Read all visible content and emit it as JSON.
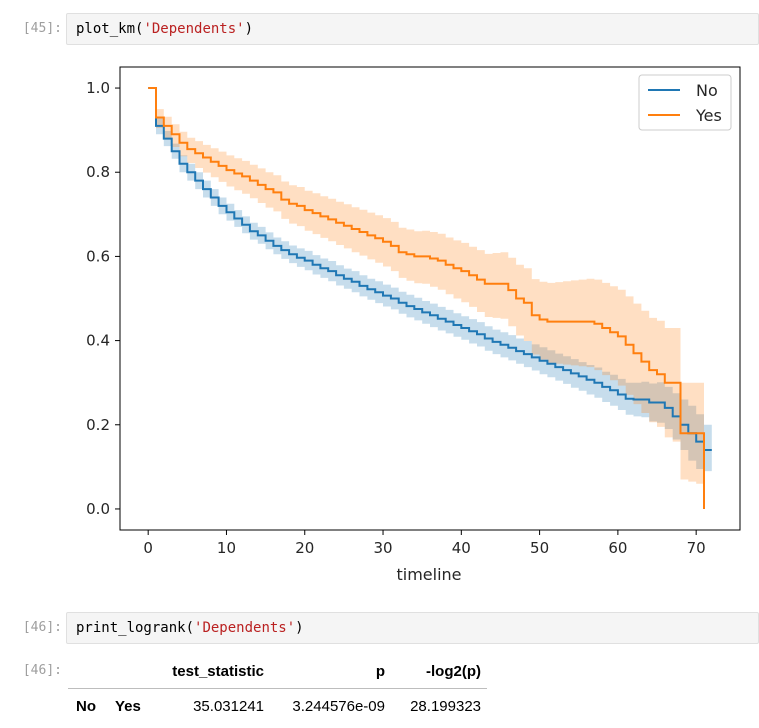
{
  "cells": [
    {
      "prompt": "[45]:",
      "func": "plot_km",
      "arg": "'Dependents'"
    },
    {
      "prompt": "[46]:",
      "func": "print_logrank",
      "arg": "'Dependents'"
    }
  ],
  "output_prompt": "[46]:",
  "chart_data": {
    "type": "line",
    "subtype": "kaplan-meier step with confidence bands",
    "title": "",
    "xlabel": "timeline",
    "ylabel": "",
    "xlim": [
      -3.6,
      75.6
    ],
    "ylim": [
      -0.05,
      1.05
    ],
    "x_ticks": [
      "0",
      "10",
      "20",
      "30",
      "40",
      "50",
      "60",
      "70"
    ],
    "y_ticks": [
      "0.0",
      "0.2",
      "0.4",
      "0.6",
      "0.8",
      "1.0"
    ],
    "legend": {
      "position": "top-right",
      "entries": [
        "No",
        "Yes"
      ]
    },
    "grid": false,
    "series": [
      {
        "name": "No",
        "color": "#1f77b4",
        "x": [
          0,
          1,
          2,
          3,
          4,
          5,
          6,
          7,
          8,
          9,
          10,
          11,
          12,
          13,
          14,
          15,
          16,
          17,
          18,
          19,
          20,
          21,
          22,
          23,
          24,
          25,
          26,
          27,
          28,
          29,
          30,
          31,
          32,
          33,
          34,
          35,
          36,
          37,
          38,
          39,
          40,
          41,
          42,
          43,
          44,
          45,
          46,
          47,
          48,
          49,
          50,
          51,
          52,
          53,
          54,
          55,
          56,
          57,
          58,
          59,
          60,
          61,
          62,
          63,
          64,
          65,
          66,
          67,
          68,
          69,
          70,
          71,
          72
        ],
        "y": [
          1.0,
          0.91,
          0.88,
          0.85,
          0.82,
          0.8,
          0.78,
          0.76,
          0.74,
          0.72,
          0.705,
          0.69,
          0.675,
          0.66,
          0.65,
          0.637,
          0.625,
          0.615,
          0.605,
          0.597,
          0.59,
          0.58,
          0.572,
          0.565,
          0.555,
          0.547,
          0.54,
          0.53,
          0.522,
          0.515,
          0.507,
          0.5,
          0.49,
          0.482,
          0.475,
          0.467,
          0.46,
          0.452,
          0.445,
          0.437,
          0.43,
          0.422,
          0.415,
          0.405,
          0.397,
          0.39,
          0.383,
          0.375,
          0.368,
          0.36,
          0.352,
          0.345,
          0.337,
          0.33,
          0.322,
          0.315,
          0.307,
          0.3,
          0.29,
          0.282,
          0.272,
          0.262,
          0.26,
          0.26,
          0.253,
          0.253,
          0.24,
          0.22,
          0.2,
          0.18,
          0.16,
          0.14,
          0.14
        ],
        "ci_lower": [
          1.0,
          0.89,
          0.862,
          0.832,
          0.8,
          0.78,
          0.76,
          0.74,
          0.72,
          0.7,
          0.685,
          0.67,
          0.655,
          0.64,
          0.63,
          0.617,
          0.605,
          0.594,
          0.584,
          0.575,
          0.567,
          0.557,
          0.549,
          0.541,
          0.531,
          0.523,
          0.515,
          0.505,
          0.497,
          0.489,
          0.481,
          0.474,
          0.464,
          0.455,
          0.448,
          0.44,
          0.432,
          0.424,
          0.417,
          0.409,
          0.402,
          0.393,
          0.386,
          0.376,
          0.368,
          0.36,
          0.353,
          0.345,
          0.337,
          0.329,
          0.32,
          0.313,
          0.305,
          0.297,
          0.288,
          0.281,
          0.272,
          0.264,
          0.254,
          0.245,
          0.235,
          0.224,
          0.22,
          0.218,
          0.208,
          0.205,
          0.19,
          0.165,
          0.14,
          0.115,
          0.095,
          0.09,
          0.09
        ],
        "ci_upper": [
          1.0,
          0.93,
          0.898,
          0.868,
          0.84,
          0.82,
          0.8,
          0.78,
          0.76,
          0.74,
          0.725,
          0.71,
          0.695,
          0.68,
          0.67,
          0.657,
          0.645,
          0.636,
          0.626,
          0.619,
          0.613,
          0.603,
          0.595,
          0.589,
          0.579,
          0.571,
          0.565,
          0.555,
          0.547,
          0.541,
          0.533,
          0.526,
          0.516,
          0.509,
          0.502,
          0.494,
          0.488,
          0.48,
          0.473,
          0.465,
          0.458,
          0.451,
          0.444,
          0.434,
          0.426,
          0.42,
          0.413,
          0.405,
          0.399,
          0.391,
          0.384,
          0.377,
          0.369,
          0.363,
          0.356,
          0.349,
          0.342,
          0.336,
          0.326,
          0.319,
          0.309,
          0.3,
          0.3,
          0.302,
          0.298,
          0.301,
          0.29,
          0.275,
          0.26,
          0.245,
          0.225,
          0.2,
          0.2
        ]
      },
      {
        "name": "Yes",
        "color": "#ff7f0e",
        "x": [
          0,
          1,
          2,
          3,
          4,
          5,
          6,
          7,
          8,
          9,
          10,
          11,
          12,
          13,
          14,
          15,
          16,
          17,
          18,
          19,
          20,
          21,
          22,
          23,
          24,
          25,
          26,
          27,
          28,
          29,
          30,
          31,
          32,
          33,
          34,
          35,
          36,
          37,
          38,
          39,
          40,
          41,
          42,
          43,
          44,
          45,
          46,
          47,
          48,
          49,
          50,
          51,
          52,
          53,
          54,
          55,
          56,
          57,
          58,
          59,
          60,
          61,
          62,
          63,
          64,
          65,
          66,
          67,
          68,
          69,
          70,
          71
        ],
        "y": [
          1.0,
          0.93,
          0.91,
          0.89,
          0.87,
          0.855,
          0.845,
          0.835,
          0.825,
          0.815,
          0.805,
          0.797,
          0.79,
          0.78,
          0.77,
          0.76,
          0.752,
          0.735,
          0.725,
          0.72,
          0.71,
          0.703,
          0.695,
          0.688,
          0.68,
          0.673,
          0.665,
          0.658,
          0.65,
          0.643,
          0.635,
          0.625,
          0.61,
          0.605,
          0.6,
          0.6,
          0.595,
          0.59,
          0.58,
          0.572,
          0.565,
          0.555,
          0.545,
          0.535,
          0.535,
          0.535,
          0.52,
          0.5,
          0.49,
          0.46,
          0.45,
          0.445,
          0.445,
          0.445,
          0.445,
          0.445,
          0.445,
          0.44,
          0.43,
          0.42,
          0.41,
          0.39,
          0.37,
          0.35,
          0.33,
          0.32,
          0.3,
          0.3,
          0.18,
          0.18,
          0.18,
          0.0
        ],
        "ci_lower": [
          1.0,
          0.905,
          0.882,
          0.86,
          0.838,
          0.822,
          0.81,
          0.799,
          0.788,
          0.777,
          0.766,
          0.757,
          0.749,
          0.738,
          0.727,
          0.716,
          0.707,
          0.689,
          0.678,
          0.672,
          0.661,
          0.653,
          0.644,
          0.636,
          0.627,
          0.619,
          0.61,
          0.602,
          0.593,
          0.585,
          0.576,
          0.565,
          0.549,
          0.542,
          0.536,
          0.535,
          0.528,
          0.521,
          0.51,
          0.5,
          0.491,
          0.48,
          0.468,
          0.456,
          0.454,
          0.452,
          0.434,
          0.412,
          0.399,
          0.367,
          0.355,
          0.347,
          0.345,
          0.343,
          0.341,
          0.339,
          0.337,
          0.33,
          0.318,
          0.306,
          0.293,
          0.271,
          0.249,
          0.228,
          0.206,
          0.195,
          0.17,
          0.16,
          0.07,
          0.065,
          0.06,
          0.0
        ],
        "ci_upper": [
          1.0,
          0.95,
          0.932,
          0.914,
          0.896,
          0.882,
          0.874,
          0.865,
          0.857,
          0.849,
          0.84,
          0.833,
          0.827,
          0.818,
          0.809,
          0.8,
          0.793,
          0.778,
          0.769,
          0.765,
          0.756,
          0.75,
          0.743,
          0.737,
          0.73,
          0.724,
          0.717,
          0.711,
          0.704,
          0.698,
          0.691,
          0.682,
          0.668,
          0.664,
          0.66,
          0.661,
          0.658,
          0.654,
          0.645,
          0.638,
          0.632,
          0.623,
          0.615,
          0.606,
          0.608,
          0.61,
          0.597,
          0.58,
          0.572,
          0.546,
          0.54,
          0.537,
          0.539,
          0.541,
          0.543,
          0.545,
          0.547,
          0.545,
          0.537,
          0.529,
          0.521,
          0.505,
          0.488,
          0.471,
          0.454,
          0.447,
          0.43,
          0.43,
          0.3,
          0.3,
          0.3,
          0.0
        ]
      }
    ]
  },
  "logrank_table": {
    "columns": [
      "test_statistic",
      "p",
      "-log2(p)"
    ],
    "rows": [
      {
        "index": [
          "No",
          "Yes"
        ],
        "values": [
          "35.031241",
          "3.244576e-09",
          "28.199323"
        ]
      }
    ]
  }
}
